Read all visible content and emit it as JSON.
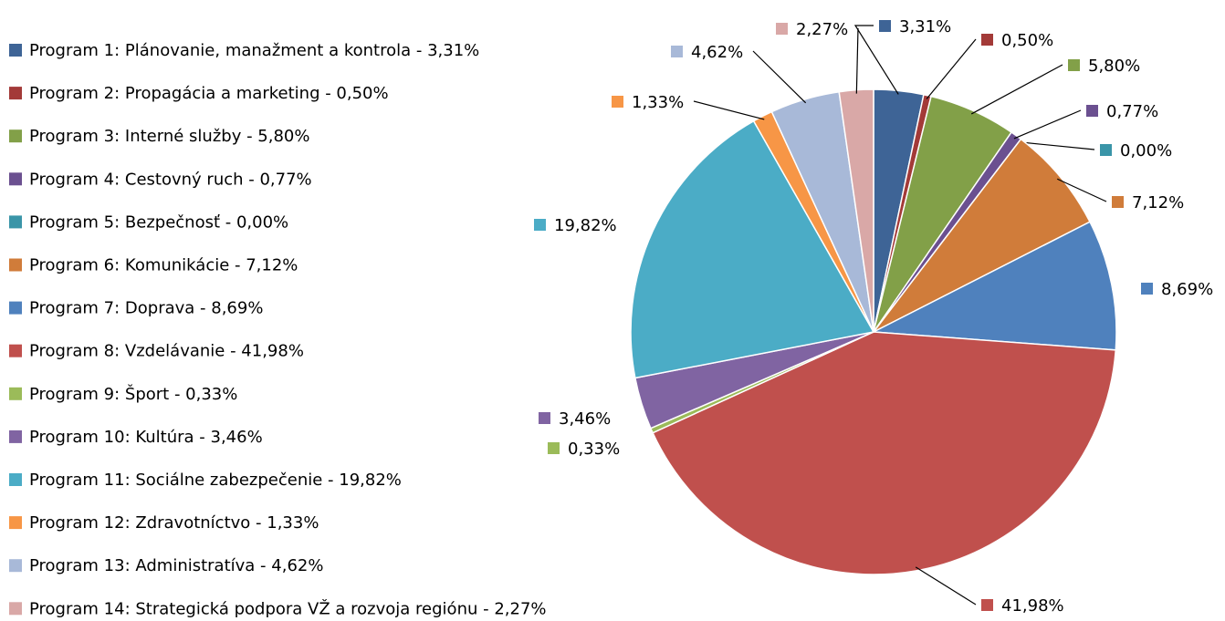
{
  "chart_data": {
    "type": "pie",
    "categories": [
      "Program 1: Plánovanie, manažment  a kontrola - 3,31%",
      "Program 2: Propagácia a marketing - 0,50%",
      "Program 3: Interné služby - 5,80%",
      "Program 4: Cestovný ruch - 0,77%",
      "Program 5: Bezpečnosť - 0,00%",
      "Program 6: Komunikácie - 7,12%",
      "Program 7: Doprava - 8,69%",
      "Program 8: Vzdelávanie - 41,98%",
      "Program 9: Šport  - 0,33%",
      "Program 10: Kultúra - 3,46%",
      "Program 11: Sociálne zabezpečenie - 19,82%",
      "Program 12: Zdravotníctvo - 1,33%",
      "Program 13: Administratíva - 4,62%",
      "Program 14: Strategická podpora VŽ a rozvoja regiónu - 2,27%"
    ],
    "values": [
      3.31,
      0.5,
      5.8,
      0.77,
      0,
      7.12,
      8.69,
      41.98,
      0.33,
      3.46,
      19.82,
      1.33,
      4.62,
      2.27
    ],
    "value_labels": [
      "3,31%",
      "0,50%",
      "5,80%",
      "0,77%",
      "0,00%",
      "7,12%",
      "8,69%",
      "41,98%",
      "0,33%",
      "3,46%",
      "19,82%",
      "1,33%",
      "4,62%",
      "2,27%"
    ],
    "colors": [
      "#3E6496",
      "#A33A38",
      "#82A048",
      "#6B5090",
      "#3A95A8",
      "#D07C3A",
      "#4F81BD",
      "#C0504D",
      "#9BBB59",
      "#8064A2",
      "#4BACC6",
      "#F79646",
      "#A8B9D8",
      "#D9A8A7"
    ],
    "legend": "left"
  }
}
